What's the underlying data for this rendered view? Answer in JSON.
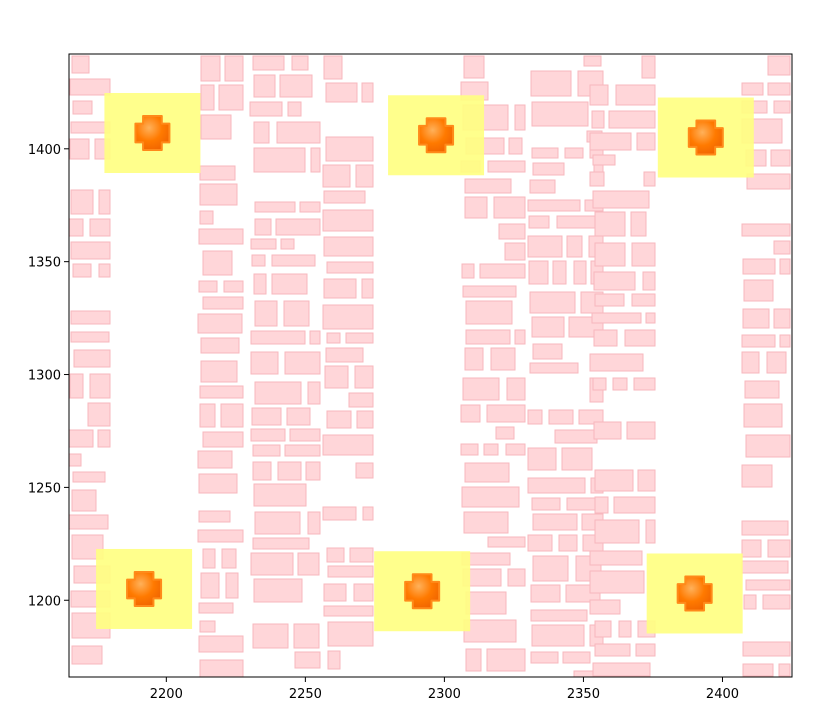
{
  "chart_data": {
    "type": "scatter",
    "title": "",
    "xlabel": "",
    "ylabel": "",
    "xlim": [
      2165,
      2425
    ],
    "ylim": [
      1166,
      1442
    ],
    "xticks": [
      2200,
      2250,
      2300,
      2350,
      2400
    ],
    "yticks": [
      1200,
      1250,
      1300,
      1350,
      1400
    ],
    "grid": false,
    "colors": {
      "building_fill": "#ffd6d9",
      "building_edge": "#f7b7bd",
      "highlight_fill": "#ffff80",
      "marker_fill": "#ff7a00"
    },
    "highlights": [
      {
        "x": 2195,
        "y": 1407
      },
      {
        "x": 2297,
        "y": 1406
      },
      {
        "x": 2394,
        "y": 1405
      },
      {
        "x": 2192,
        "y": 1205
      },
      {
        "x": 2292,
        "y": 1204
      },
      {
        "x": 2390,
        "y": 1203
      }
    ]
  }
}
